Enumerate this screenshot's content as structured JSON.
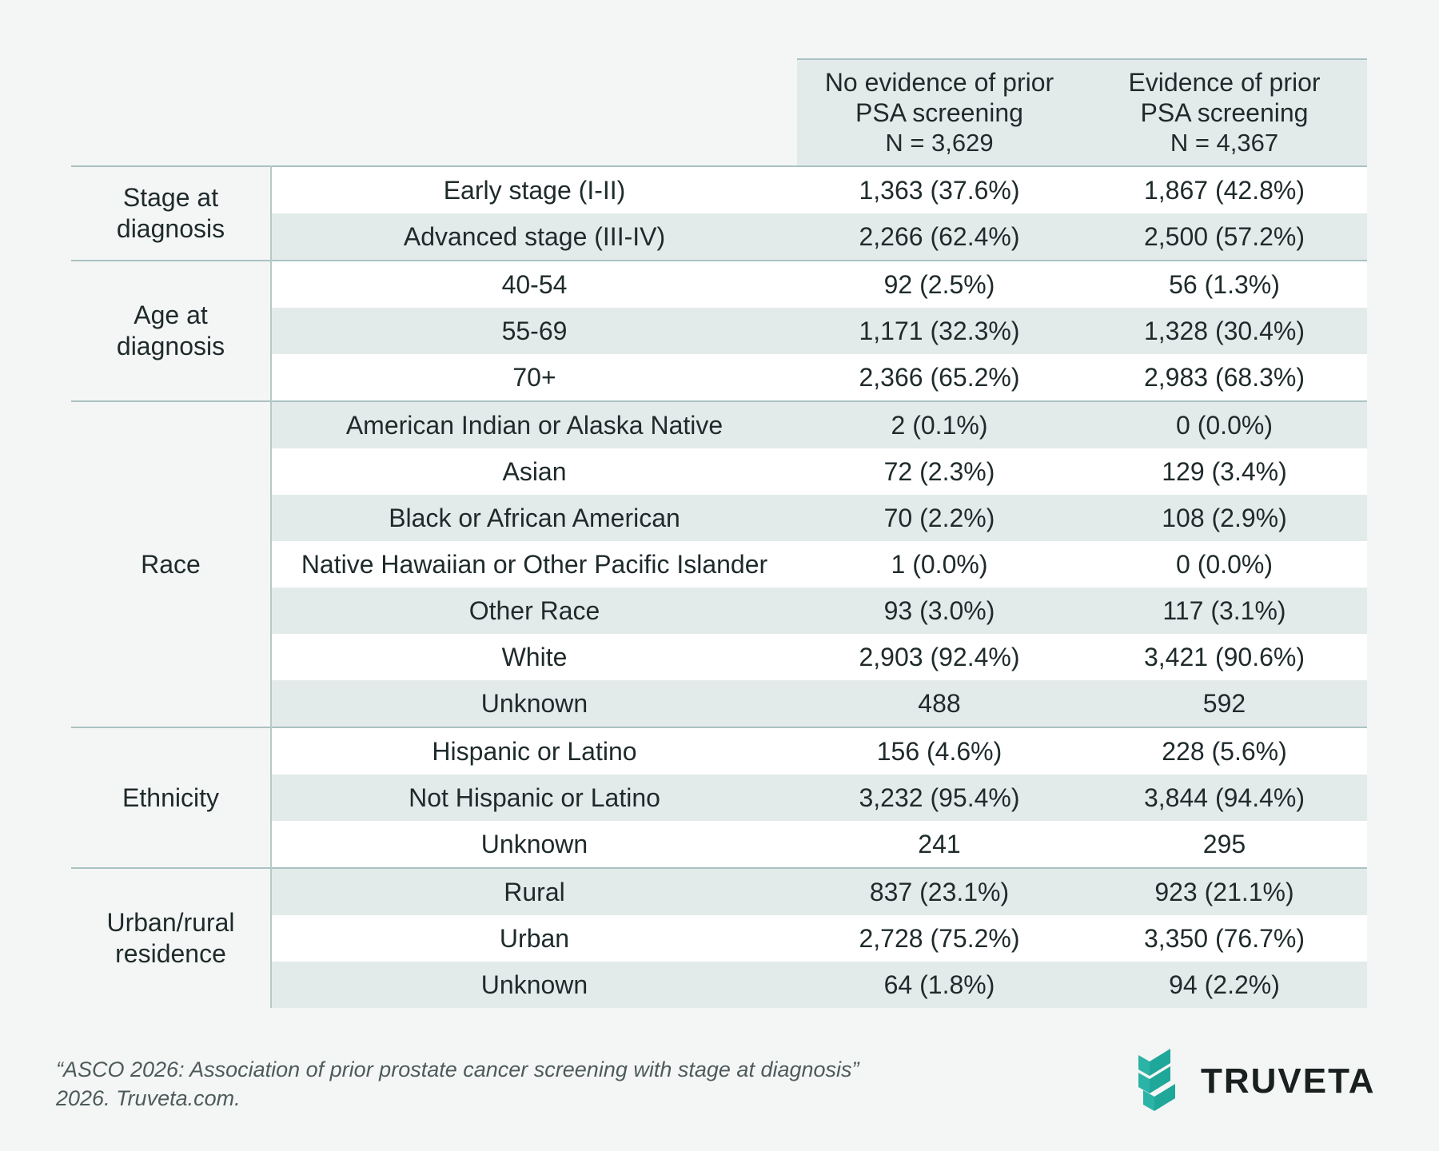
{
  "chart_data": {
    "type": "table",
    "columns": [
      {
        "title_lines": [
          "No evidence of prior",
          "PSA screening"
        ],
        "n_label": "N = 3,629"
      },
      {
        "title_lines": [
          "Evidence of prior",
          "PSA screening"
        ],
        "n_label": "N = 4,367"
      }
    ],
    "groups": [
      {
        "name_lines": [
          "Stage at",
          "diagnosis"
        ],
        "rows": [
          {
            "label": "Early stage (I-II)",
            "values": [
              "1,363 (37.6%)",
              "1,867 (42.8%)"
            ]
          },
          {
            "label": "Advanced stage (III-IV)",
            "values": [
              "2,266 (62.4%)",
              "2,500 (57.2%)"
            ]
          }
        ]
      },
      {
        "name_lines": [
          "Age at",
          "diagnosis"
        ],
        "rows": [
          {
            "label": "40-54",
            "values": [
              "92 (2.5%)",
              "56 (1.3%)"
            ]
          },
          {
            "label": "55-69",
            "values": [
              "1,171 (32.3%)",
              "1,328 (30.4%)"
            ]
          },
          {
            "label": "70+",
            "values": [
              "2,366 (65.2%)",
              "2,983 (68.3%)"
            ]
          }
        ]
      },
      {
        "name_lines": [
          "Race"
        ],
        "rows": [
          {
            "label": "American Indian or Alaska Native",
            "values": [
              "2 (0.1%)",
              "0 (0.0%)"
            ]
          },
          {
            "label": "Asian",
            "values": [
              "72 (2.3%)",
              "129 (3.4%)"
            ]
          },
          {
            "label": "Black or African American",
            "values": [
              "70 (2.2%)",
              "108 (2.9%)"
            ]
          },
          {
            "label": "Native Hawaiian or Other Pacific Islander",
            "values": [
              "1 (0.0%)",
              "0 (0.0%)"
            ]
          },
          {
            "label": "Other Race",
            "values": [
              "93 (3.0%)",
              "117 (3.1%)"
            ]
          },
          {
            "label": "White",
            "values": [
              "2,903 (92.4%)",
              "3,421 (90.6%)"
            ]
          },
          {
            "label": "Unknown",
            "values": [
              "488",
              "592"
            ]
          }
        ]
      },
      {
        "name_lines": [
          "Ethnicity"
        ],
        "rows": [
          {
            "label": "Hispanic or Latino",
            "values": [
              "156 (4.6%)",
              "228 (5.6%)"
            ]
          },
          {
            "label": "Not Hispanic or Latino",
            "values": [
              "3,232 (95.4%)",
              "3,844 (94.4%)"
            ]
          },
          {
            "label": "Unknown",
            "values": [
              "241",
              "295"
            ]
          }
        ]
      },
      {
        "name_lines": [
          "Urban/rural",
          "residence"
        ],
        "rows": [
          {
            "label": "Rural",
            "values": [
              "837 (23.1%)",
              "923 (21.1%)"
            ]
          },
          {
            "label": "Urban",
            "values": [
              "2,728 (75.2%)",
              "3,350 (76.7%)"
            ]
          },
          {
            "label": "Unknown",
            "values": [
              "64 (1.8%)",
              "94 (2.2%)"
            ]
          }
        ]
      }
    ]
  },
  "citation": {
    "line1": "“ASCO 2026: Association of prior prostate cancer screening with stage at diagnosis”",
    "line2": "2026. Truveta.com."
  },
  "logo": {
    "text": "TRUVETA",
    "icon": "truveta-chevron-icon"
  },
  "colors": {
    "band": "#e3ebea",
    "rule": "#a9c2c1",
    "accent": "#1fa79a",
    "background": "#f4f6f5"
  }
}
